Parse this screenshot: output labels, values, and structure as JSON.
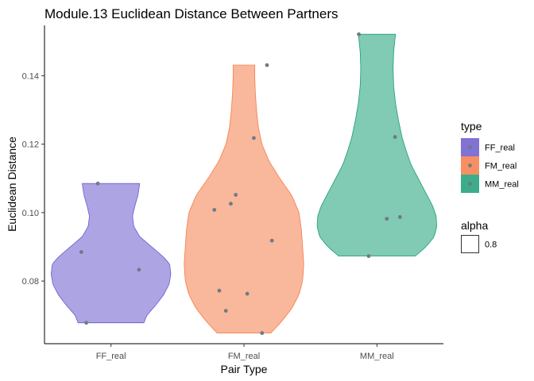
{
  "chart_data": {
    "type": "violin",
    "title": "Module.13 Euclidean Distance Between Partners",
    "xlabel": "Pair Type",
    "ylabel": "Euclidean Distance",
    "categories": [
      "FF_real",
      "FM_real",
      "MM_real"
    ],
    "yticks": [
      0.08,
      0.1,
      0.12,
      0.14
    ],
    "ytick_labels": [
      "0.08",
      "0.10",
      "0.12",
      "0.14"
    ],
    "ylim": [
      0.0617,
      0.1547
    ],
    "grid": false,
    "legend_position": "right",
    "series": [
      {
        "name": "FF_real",
        "color": "#6a5acd",
        "points": [
          0.0678,
          0.0833,
          0.0885,
          0.1085
        ],
        "violin_profile": [
          [
            0.0678,
            0.55
          ],
          [
            0.07,
            0.6
          ],
          [
            0.073,
            0.75
          ],
          [
            0.076,
            0.88
          ],
          [
            0.079,
            0.97
          ],
          [
            0.082,
            1.0
          ],
          [
            0.085,
            0.98
          ],
          [
            0.087,
            0.88
          ],
          [
            0.09,
            0.68
          ],
          [
            0.093,
            0.48
          ],
          [
            0.096,
            0.38
          ],
          [
            0.099,
            0.36
          ],
          [
            0.102,
            0.4
          ],
          [
            0.105,
            0.45
          ],
          [
            0.1085,
            0.48
          ]
        ]
      },
      {
        "name": "FM_real",
        "color": "#f47c48",
        "points": [
          0.0648,
          0.0713,
          0.0763,
          0.0772,
          0.0918,
          0.1008,
          0.1026,
          0.1052,
          0.1218,
          0.1431
        ],
        "violin_profile": [
          [
            0.0648,
            0.45
          ],
          [
            0.068,
            0.62
          ],
          [
            0.072,
            0.8
          ],
          [
            0.076,
            0.92
          ],
          [
            0.08,
            0.98
          ],
          [
            0.085,
            1.0
          ],
          [
            0.09,
            0.98
          ],
          [
            0.095,
            0.96
          ],
          [
            0.1,
            0.92
          ],
          [
            0.105,
            0.8
          ],
          [
            0.11,
            0.6
          ],
          [
            0.115,
            0.42
          ],
          [
            0.12,
            0.3
          ],
          [
            0.125,
            0.24
          ],
          [
            0.13,
            0.21
          ],
          [
            0.135,
            0.19
          ],
          [
            0.14,
            0.18
          ],
          [
            0.1431,
            0.18
          ]
        ]
      },
      {
        "name": "MM_real",
        "color": "#1a9e77",
        "points": [
          0.0873,
          0.0982,
          0.0987,
          0.1221,
          0.1521
        ],
        "violin_profile": [
          [
            0.0873,
            0.64
          ],
          [
            0.09,
            0.82
          ],
          [
            0.093,
            0.96
          ],
          [
            0.096,
            1.0
          ],
          [
            0.099,
            0.99
          ],
          [
            0.102,
            0.93
          ],
          [
            0.105,
            0.84
          ],
          [
            0.108,
            0.75
          ],
          [
            0.111,
            0.66
          ],
          [
            0.114,
            0.57
          ],
          [
            0.118,
            0.49
          ],
          [
            0.122,
            0.42
          ],
          [
            0.127,
            0.36
          ],
          [
            0.132,
            0.31
          ],
          [
            0.137,
            0.28
          ],
          [
            0.142,
            0.27
          ],
          [
            0.147,
            0.28
          ],
          [
            0.1521,
            0.31
          ]
        ]
      }
    ],
    "legend": {
      "type_title": "type",
      "type_items": [
        "FF_real",
        "FM_real",
        "MM_real"
      ],
      "alpha_title": "alpha",
      "alpha_items": [
        "0.8"
      ]
    }
  }
}
